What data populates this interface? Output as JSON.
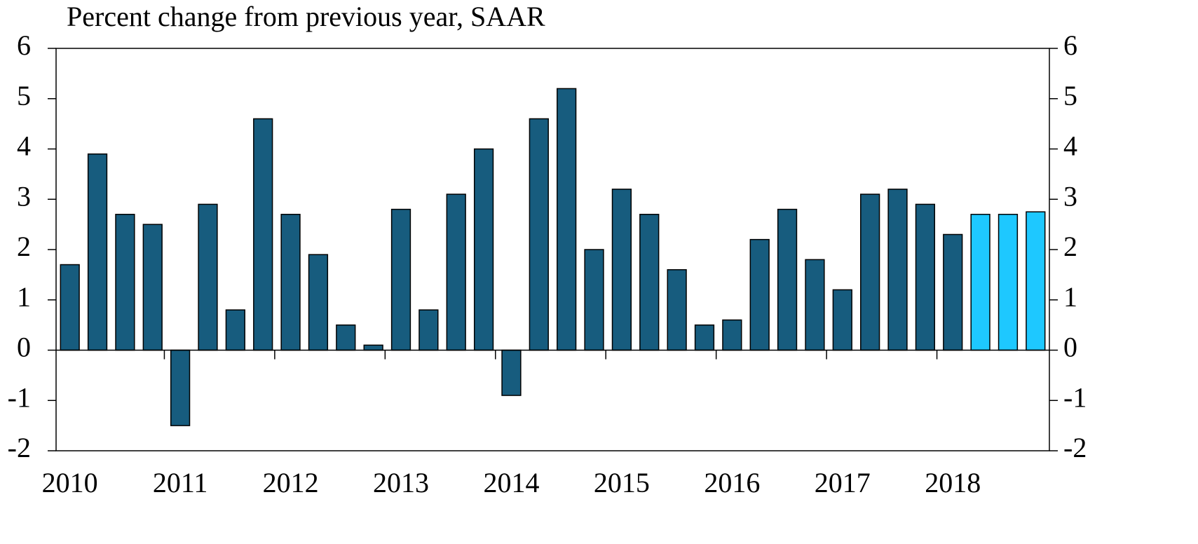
{
  "chart_data": {
    "type": "bar",
    "title": "Percent change from previous year, SAAR",
    "categories": [
      "2010",
      null,
      null,
      null,
      "2011",
      null,
      null,
      null,
      "2012",
      null,
      null,
      null,
      "2013",
      null,
      null,
      null,
      "2014",
      null,
      null,
      null,
      "2015",
      null,
      null,
      null,
      "2016",
      null,
      null,
      null,
      "2017",
      null,
      null,
      null,
      "2018",
      null,
      null,
      null
    ],
    "values": [
      1.7,
      3.9,
      2.7,
      2.5,
      -1.5,
      2.9,
      0.8,
      4.6,
      2.7,
      1.9,
      0.5,
      0.1,
      2.8,
      0.8,
      3.1,
      4.0,
      -0.9,
      4.6,
      5.2,
      2.0,
      3.2,
      2.7,
      1.6,
      0.5,
      0.6,
      2.2,
      2.8,
      1.8,
      1.2,
      3.1,
      3.2,
      2.9,
      2.3,
      2.7,
      2.7,
      2.75
    ],
    "colors": [
      "#175c7e",
      "#175c7e",
      "#175c7e",
      "#175c7e",
      "#175c7e",
      "#175c7e",
      "#175c7e",
      "#175c7e",
      "#175c7e",
      "#175c7e",
      "#175c7e",
      "#175c7e",
      "#175c7e",
      "#175c7e",
      "#175c7e",
      "#175c7e",
      "#175c7e",
      "#175c7e",
      "#175c7e",
      "#175c7e",
      "#175c7e",
      "#175c7e",
      "#175c7e",
      "#175c7e",
      "#175c7e",
      "#175c7e",
      "#175c7e",
      "#175c7e",
      "#175c7e",
      "#175c7e",
      "#175c7e",
      "#175c7e",
      "#175c7e",
      "#1ec8ff",
      "#1ec8ff",
      "#1ec8ff"
    ],
    "ylim": [
      -2,
      6
    ],
    "yticks": [
      -2,
      -1,
      0,
      1,
      2,
      3,
      4,
      5,
      6
    ],
    "grid": false
  }
}
